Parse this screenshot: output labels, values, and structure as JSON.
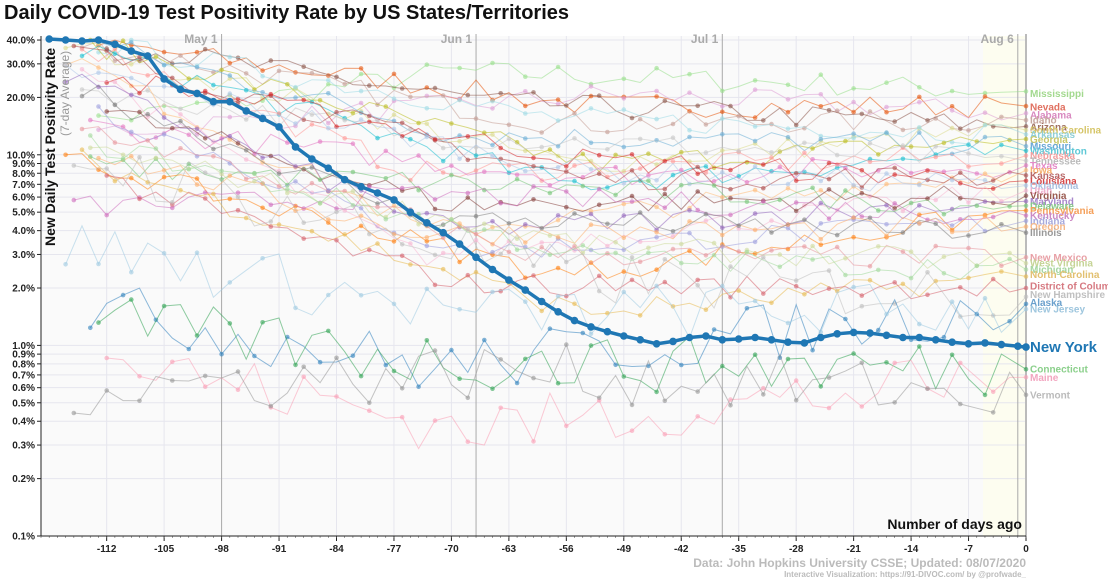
{
  "chart_data": {
    "type": "line",
    "title": "Daily COVID-19 Test Positivity Rate by US States/Territories",
    "ylabel": "New Daily Test Positivity Rate",
    "ylabel_sub": "(7-day Average)",
    "xlabel": "Number of days ago",
    "y_scale": "log",
    "ylim": [
      0.001,
      0.42
    ],
    "xlim": [
      -120,
      0
    ],
    "grid": true,
    "y_ticks": [
      "0.1%",
      "0.2%",
      "0.3%",
      "0.4%",
      "0.5%",
      "0.6%",
      "0.7%",
      "0.8%",
      "0.9%",
      "1.0%",
      "2.0%",
      "3.0%",
      "4.0%",
      "5.0%",
      "6.0%",
      "7.0%",
      "8.0%",
      "9.0%",
      "10.0%",
      "20.0%",
      "30.0%",
      "40.0%"
    ],
    "x_ticks": [
      "-112",
      "-105",
      "-98",
      "-91",
      "-84",
      "-77",
      "-70",
      "-63",
      "-56",
      "-49",
      "-42",
      "-35",
      "-28",
      "-21",
      "-14",
      "-7",
      "0"
    ],
    "date_markers": [
      {
        "label": "May 1",
        "x": -98
      },
      {
        "label": "Jun 1",
        "x": -67
      },
      {
        "label": "Jul 1",
        "x": -37
      },
      {
        "label": "Aug 6",
        "x": -1
      }
    ],
    "highlight_series": {
      "name": "New York",
      "color": "#1f77b4",
      "x": [
        -119,
        -117,
        -115,
        -113,
        -111,
        -109,
        -107,
        -105,
        -103,
        -101,
        -99,
        -97,
        -95,
        -93,
        -91,
        -89,
        -87,
        -85,
        -83,
        -81,
        -79,
        -77,
        -75,
        -73,
        -71,
        -69,
        -67,
        -65,
        -63,
        -61,
        -59,
        -57,
        -55,
        -53,
        -51,
        -49,
        -47,
        -45,
        -43,
        -41,
        -39,
        -37,
        -35,
        -33,
        -31,
        -29,
        -27,
        -25,
        -23,
        -21,
        -19,
        -17,
        -15,
        -13,
        -11,
        -9,
        -7,
        -5,
        -3,
        -1,
        0
      ],
      "values": [
        0.405,
        0.4,
        0.395,
        0.4,
        0.38,
        0.35,
        0.33,
        0.25,
        0.22,
        0.21,
        0.19,
        0.19,
        0.17,
        0.155,
        0.14,
        0.11,
        0.095,
        0.085,
        0.074,
        0.068,
        0.063,
        0.058,
        0.05,
        0.044,
        0.039,
        0.034,
        0.029,
        0.025,
        0.022,
        0.0195,
        0.017,
        0.015,
        0.0135,
        0.0125,
        0.0118,
        0.0112,
        0.0107,
        0.0102,
        0.0105,
        0.011,
        0.0112,
        0.0107,
        0.0108,
        0.011,
        0.0107,
        0.0104,
        0.0103,
        0.011,
        0.0115,
        0.0117,
        0.0116,
        0.0113,
        0.011,
        0.011,
        0.0107,
        0.0104,
        0.0102,
        0.0103,
        0.0101,
        0.0099,
        0.0098
      ]
    },
    "series": [
      {
        "name": "Mississippi",
        "color": "#98df8a",
        "end": 0.215
      },
      {
        "name": "Nevada",
        "color": "#e6550d",
        "end": 0.18
      },
      {
        "name": "Alabama",
        "color": "#de9ed6",
        "end": 0.165
      },
      {
        "name": "Idaho",
        "color": "#c49c94",
        "end": 0.152
      },
      {
        "name": "Arizona",
        "color": "#8c564b",
        "end": 0.141
      },
      {
        "name": "South Carolina",
        "color": "#dbdb8d",
        "end": 0.135
      },
      {
        "name": "Arkansas",
        "color": "#9edae5",
        "end": 0.128
      },
      {
        "name": "Georgia",
        "color": "#bcbd22",
        "end": 0.121
      },
      {
        "name": "Missouri",
        "color": "#6baed6",
        "end": 0.111
      },
      {
        "name": "Washington",
        "color": "#17becf",
        "end": 0.105
      },
      {
        "name": "Nebraska",
        "color": "#ff9896",
        "end": 0.099
      },
      {
        "name": "Tennessee",
        "color": "#c7c7c7",
        "end": 0.093
      },
      {
        "name": "Texas",
        "color": "#e377c2",
        "end": 0.088
      },
      {
        "name": "Iowa",
        "color": "#ffbb78",
        "end": 0.083
      },
      {
        "name": "Kansas",
        "color": "#ad494a",
        "end": 0.078
      },
      {
        "name": "Louisiana",
        "color": "#d62728",
        "end": 0.073
      },
      {
        "name": "Oklahoma",
        "color": "#aec7e8",
        "end": 0.069
      },
      {
        "name": "Utah",
        "color": "#f7b6d2",
        "end": 0.065
      },
      {
        "name": "Virginia",
        "color": "#843c39",
        "end": 0.061
      },
      {
        "name": "Maryland",
        "color": "#9467bd",
        "end": 0.057
      },
      {
        "name": "Delaware",
        "color": "#74c476",
        "end": 0.054
      },
      {
        "name": "Pennsylvania",
        "color": "#ff7f0e",
        "end": 0.051
      },
      {
        "name": "Kentucky",
        "color": "#ce6dbd",
        "end": 0.048
      },
      {
        "name": "Indiana",
        "color": "#9c9ede",
        "end": 0.045
      },
      {
        "name": "Oregon",
        "color": "#fdae6b",
        "end": 0.042
      },
      {
        "name": "Illinois",
        "color": "#7f7f7f",
        "end": 0.039
      },
      {
        "name": "New Mexico",
        "color": "#e7969c",
        "end": 0.029
      },
      {
        "name": "West Virginia",
        "color": "#cedb9c",
        "end": 0.027
      },
      {
        "name": "Michigan",
        "color": "#a1d99b",
        "end": 0.025
      },
      {
        "name": "North Carolina",
        "color": "#e7ba52",
        "end": 0.023
      },
      {
        "name": "District of Columbia",
        "color": "#d6616b",
        "end": 0.02
      },
      {
        "name": "New Hampshire",
        "color": "#bdbdbd",
        "end": 0.018
      },
      {
        "name": "Alaska",
        "color": "#3182bd",
        "end": 0.0165
      },
      {
        "name": "New Jersey",
        "color": "#9ecae1",
        "end": 0.0155
      },
      {
        "name": "Connecticut",
        "color": "#31a354",
        "end": 0.0075
      },
      {
        "name": "Maine",
        "color": "#fa9fb5",
        "end": 0.0068
      },
      {
        "name": "Vermont",
        "color": "#969696",
        "end": 0.0055
      }
    ],
    "labels_shown": [
      {
        "text": "Mississippi",
        "color": "#a3d98f",
        "y": 0.21
      },
      {
        "text": "Nevada",
        "color": "#e07060",
        "y": 0.178
      },
      {
        "text": "Alabama",
        "color": "#d98ac0",
        "y": 0.162
      },
      {
        "text": "Idaho",
        "color": "#c8a8a0",
        "y": 0.152
      },
      {
        "text": "Arizona",
        "color": "#a07060",
        "y": 0.14
      },
      {
        "text": "South Carolina",
        "color": "#d6c66a",
        "y": 0.135
      },
      {
        "text": "Arkansas",
        "color": "#8fcfd8",
        "y": 0.128
      },
      {
        "text": "Georgia",
        "color": "#c7c76a",
        "y": 0.12
      },
      {
        "text": "Missouri",
        "color": "#6aa8d6",
        "y": 0.111
      },
      {
        "text": "Washington",
        "color": "#5fc8d6",
        "y": 0.105
      },
      {
        "text": "Nebraska",
        "color": "#f2a0a0",
        "y": 0.099
      },
      {
        "text": "Tennessee",
        "color": "#bbbbbb",
        "y": 0.093
      },
      {
        "text": "Texas",
        "color": "#e58ac8",
        "y": 0.088
      },
      {
        "text": "Iowa",
        "color": "#f5b06e",
        "y": 0.083
      },
      {
        "text": "Kansas",
        "color": "#b96a6a",
        "y": 0.078
      },
      {
        "text": "Louisiana",
        "color": "#d64a4a",
        "y": 0.073
      },
      {
        "text": "Oklahoma",
        "color": "#a8c0e0",
        "y": 0.069
      },
      {
        "text": "Utah",
        "color": "#f0b0cc",
        "y": 0.065
      },
      {
        "text": "Virginia",
        "color": "#9a5a50",
        "y": 0.061
      },
      {
        "text": "Maryland",
        "color": "#a888cc",
        "y": 0.057
      },
      {
        "text": "Delaware",
        "color": "#86c88a",
        "y": 0.054
      },
      {
        "text": "Pennsylvania",
        "color": "#f5a05a",
        "y": 0.051
      },
      {
        "text": "Kentucky",
        "color": "#cc8ac4",
        "y": 0.048
      },
      {
        "text": "Indiana",
        "color": "#a8aadc",
        "y": 0.045
      },
      {
        "text": "Oregon",
        "color": "#f5b888",
        "y": 0.042
      },
      {
        "text": "Illinois",
        "color": "#999999",
        "y": 0.039
      },
      {
        "text": "New Mexico",
        "color": "#e8a0a6",
        "y": 0.029
      },
      {
        "text": "West Virginia",
        "color": "#c6d496",
        "y": 0.027
      },
      {
        "text": "Michigan",
        "color": "#a6d6a0",
        "y": 0.025
      },
      {
        "text": "North Carolina",
        "color": "#e2c070",
        "y": 0.0235
      },
      {
        "text": "District of Columbia",
        "color": "#d67a82",
        "y": 0.0205
      },
      {
        "text": "New Hampshire",
        "color": "#c0c0c0",
        "y": 0.0185
      },
      {
        "text": "Alaska",
        "color": "#6aa0cc",
        "y": 0.0168
      },
      {
        "text": "New Jersey",
        "color": "#9ec6de",
        "y": 0.0155
      },
      {
        "text": "Connecticut",
        "color": "#8cd08c",
        "y": 0.0075
      },
      {
        "text": "Maine",
        "color": "#f2a6c0",
        "y": 0.0068
      },
      {
        "text": "Vermont",
        "color": "#bbbbbb",
        "y": 0.0055
      },
      {
        "text": "New York",
        "color": "#1f77b4",
        "y": 0.0098,
        "bold": true
      }
    ]
  },
  "footer": {
    "source": "Data: John Hopkins University CSSE; Updated: 08/07/2020",
    "credit": "Interactive Visualization: https://91-DIVOC.com/ by @profwade_"
  }
}
